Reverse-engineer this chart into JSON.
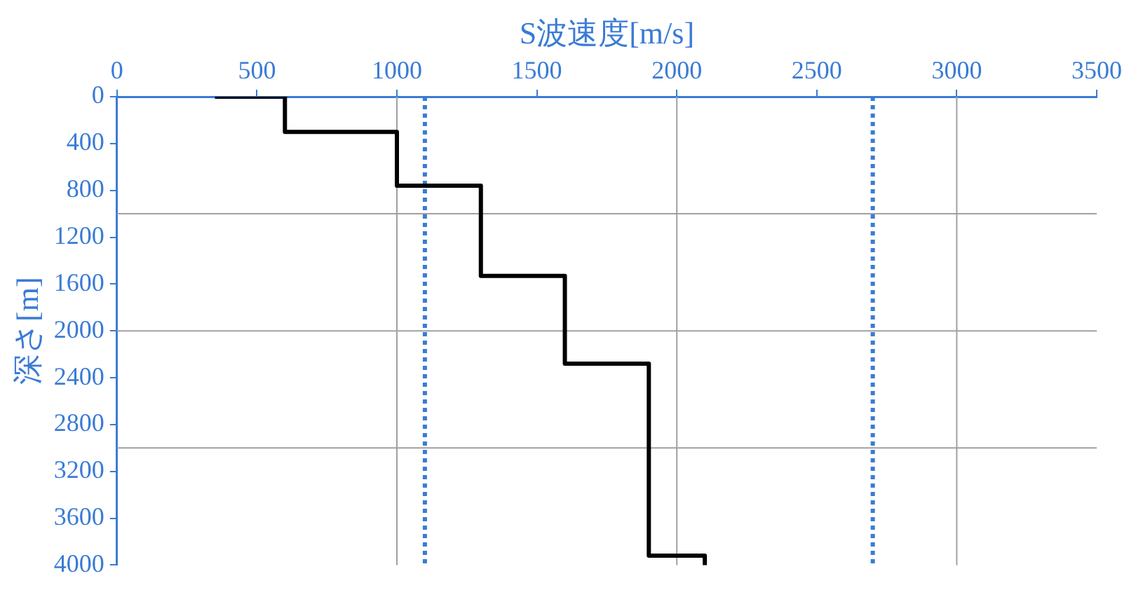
{
  "chart_data": {
    "type": "line",
    "xlabel": "S波速度[m/s]",
    "ylabel": "深さ[m]",
    "xlim": [
      0,
      3500
    ],
    "xticks": [
      0,
      500,
      1000,
      1500,
      2000,
      2500,
      3000,
      3500
    ],
    "ylim": [
      4000,
      0
    ],
    "yticks": [
      0,
      400,
      800,
      1200,
      1600,
      2000,
      2400,
      2800,
      3200,
      3600,
      4000
    ],
    "grid": false,
    "legend": false,
    "marker": "none",
    "line_style": "solid",
    "series": [
      {
        "color": "#000000",
        "x": [
          350,
          600,
          600,
          1000,
          1000,
          1300,
          1300,
          1600,
          1600,
          1900,
          1900,
          2100,
          2100
        ],
        "values": [
          0,
          0,
          300,
          300,
          760,
          760,
          1530,
          1530,
          2280,
          2280,
          3920,
          3920,
          4000
        ]
      }
    ],
    "ref_lines": [
      {
        "axis": "x",
        "value": 1000,
        "color": "#a0a0a0",
        "line_style": "solid"
      },
      {
        "axis": "x",
        "value": 2000,
        "color": "#a0a0a0",
        "line_style": "solid"
      },
      {
        "axis": "x",
        "value": 3000,
        "color": "#a0a0a0",
        "line_style": "solid"
      },
      {
        "axis": "y",
        "value": 1000,
        "color": "#a0a0a0",
        "line_style": "solid"
      },
      {
        "axis": "y",
        "value": 2000,
        "color": "#a0a0a0",
        "line_style": "solid"
      },
      {
        "axis": "y",
        "value": 3000,
        "color": "#a0a0a0",
        "line_style": "solid"
      },
      {
        "axis": "x",
        "value": 1100,
        "color": "#3a7bd5",
        "line_style": "dotted"
      },
      {
        "axis": "x",
        "value": 2700,
        "color": "#3a7bd5",
        "line_style": "dotted"
      }
    ]
  }
}
